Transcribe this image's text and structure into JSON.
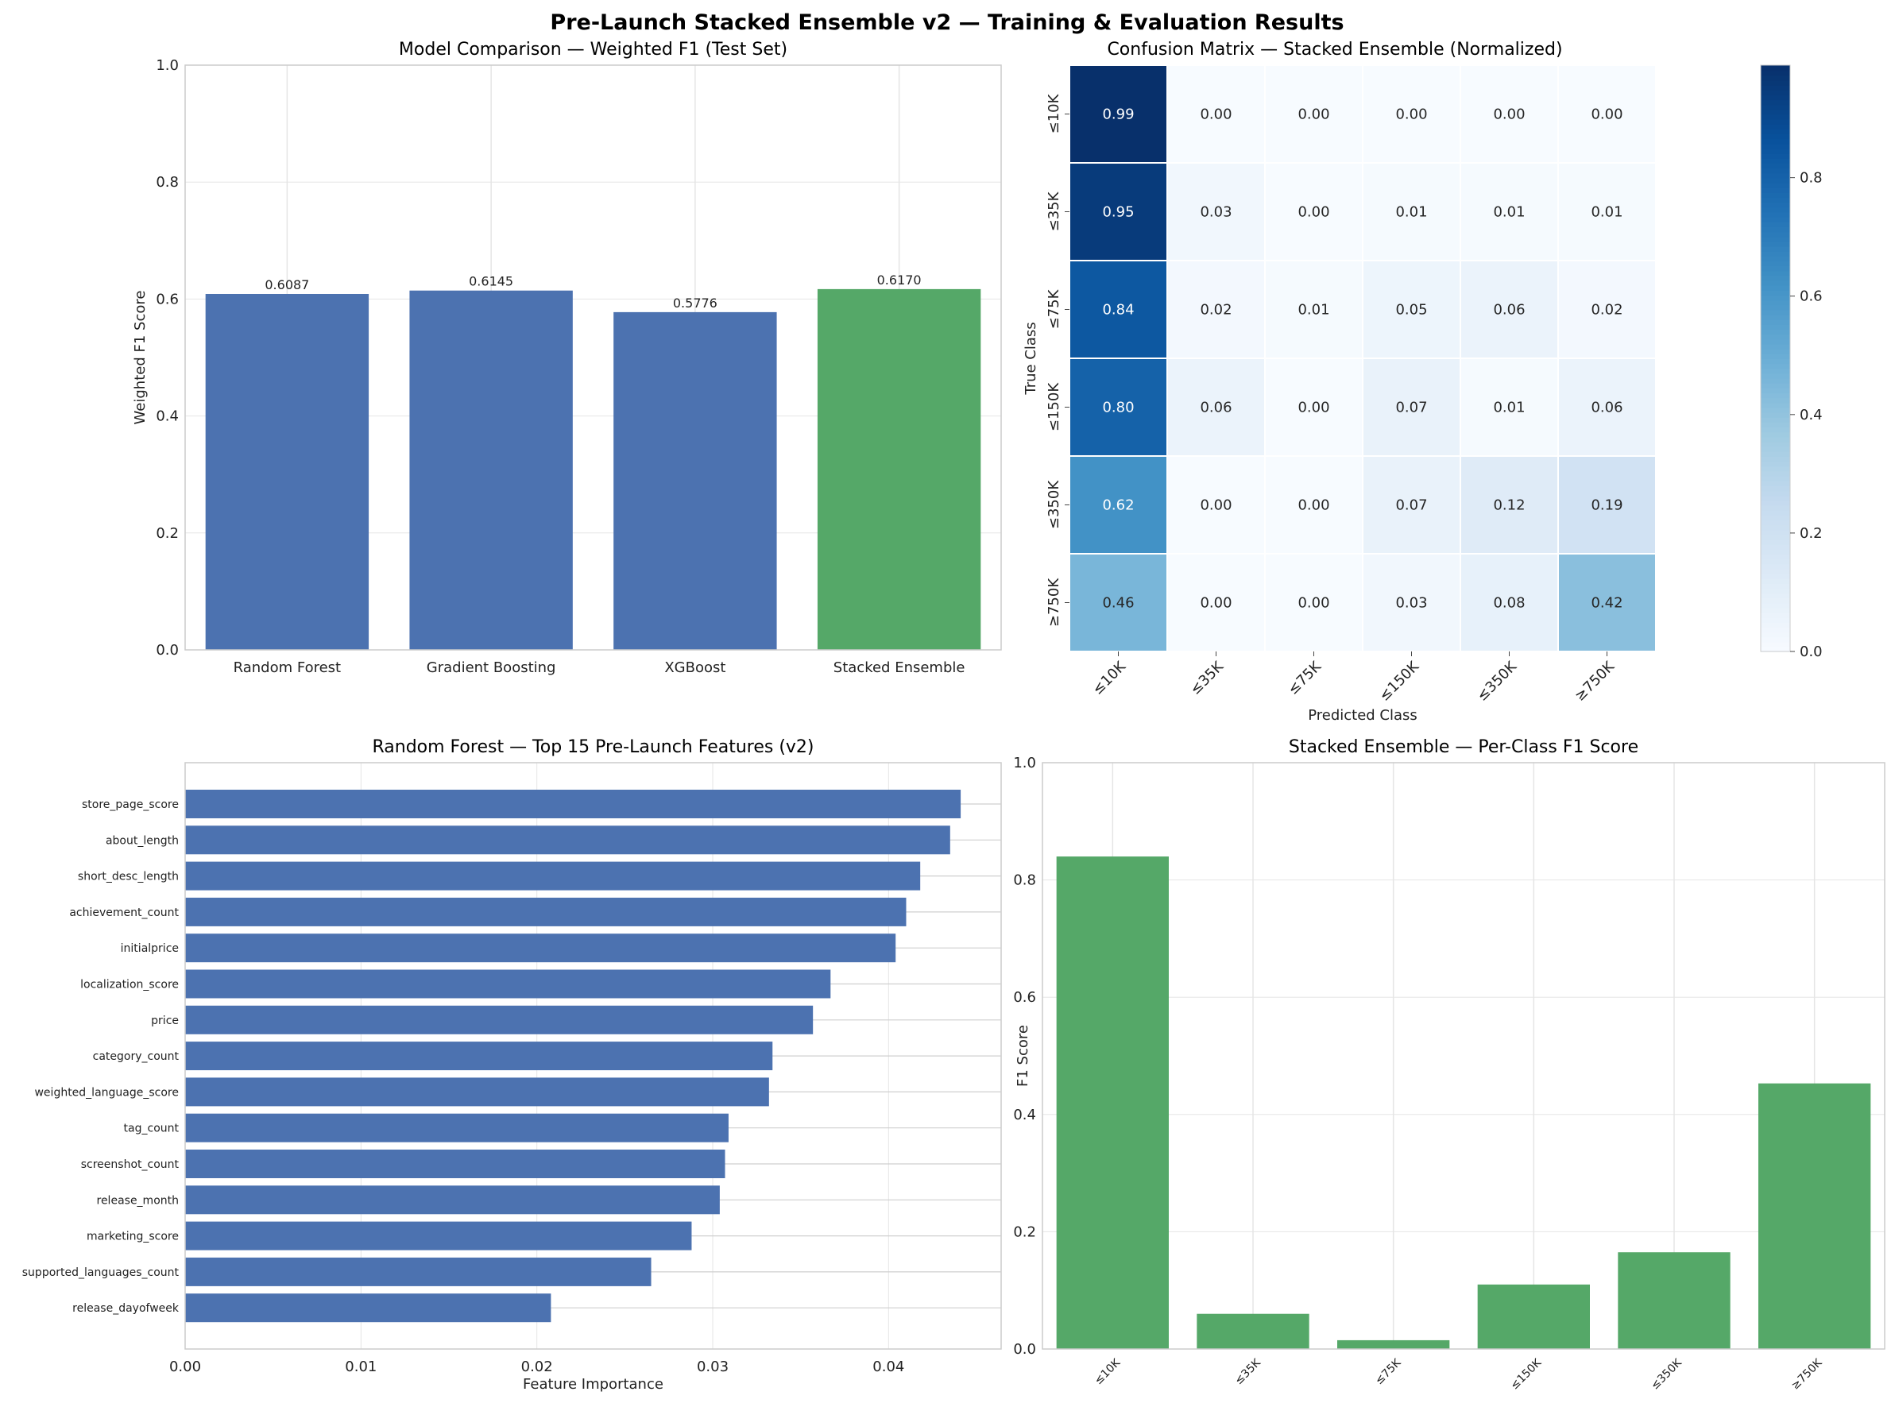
{
  "figure": {
    "title": "Pre-Launch Stacked Ensemble v2 — Training & Evaluation Results"
  },
  "colors": {
    "bar_blue": "#4c72b0",
    "bar_green": "#55a868",
    "grid": "#e5e5e5",
    "axis_frame": "#cccccc"
  },
  "chart_data": [
    {
      "type": "bar",
      "title": "Model Comparison — Weighted F1 (Test Set)",
      "xlabel": "",
      "ylabel": "Weighted F1 Score",
      "categories": [
        "Random Forest",
        "Gradient Boosting",
        "XGBoost",
        "Stacked Ensemble"
      ],
      "values": [
        0.6087,
        0.6145,
        0.5776,
        0.617
      ],
      "value_labels": [
        "0.6087",
        "0.6145",
        "0.5776",
        "0.6170"
      ],
      "bar_colors": [
        "#4c72b0",
        "#4c72b0",
        "#4c72b0",
        "#55a868"
      ],
      "ylim": [
        0,
        1.0
      ],
      "yticks": [
        0.0,
        0.2,
        0.4,
        0.6,
        0.8,
        1.0
      ],
      "ytick_labels": [
        "0.0",
        "0.2",
        "0.4",
        "0.6",
        "0.8",
        "1.0"
      ],
      "grid": true
    },
    {
      "type": "heatmap",
      "title": "Confusion Matrix — Stacked Ensemble (Normalized)",
      "xlabel": "Predicted Class",
      "ylabel": "True Class",
      "x_categories": [
        "≤10K",
        "≤35K",
        "≤75K",
        "≤150K",
        "≤350K",
        "≥750K"
      ],
      "y_categories": [
        "≤10K",
        "≤35K",
        "≤75K",
        "≤150K",
        "≤350K",
        "≥750K"
      ],
      "values": [
        [
          0.99,
          0.0,
          0.0,
          0.0,
          0.0,
          0.0
        ],
        [
          0.95,
          0.03,
          0.0,
          0.01,
          0.01,
          0.01
        ],
        [
          0.84,
          0.02,
          0.01,
          0.05,
          0.06,
          0.02
        ],
        [
          0.8,
          0.06,
          0.0,
          0.07,
          0.01,
          0.06
        ],
        [
          0.62,
          0.0,
          0.0,
          0.07,
          0.12,
          0.19
        ],
        [
          0.46,
          0.0,
          0.0,
          0.03,
          0.08,
          0.42
        ]
      ],
      "value_labels": [
        [
          "0.99",
          "0.00",
          "0.00",
          "0.00",
          "0.00",
          "0.00"
        ],
        [
          "0.95",
          "0.03",
          "0.00",
          "0.01",
          "0.01",
          "0.01"
        ],
        [
          "0.84",
          "0.02",
          "0.01",
          "0.05",
          "0.06",
          "0.02"
        ],
        [
          "0.80",
          "0.06",
          "0.00",
          "0.07",
          "0.01",
          "0.06"
        ],
        [
          "0.62",
          "0.00",
          "0.00",
          "0.07",
          "0.12",
          "0.19"
        ],
        [
          "0.46",
          "0.00",
          "0.00",
          "0.03",
          "0.08",
          "0.42"
        ]
      ],
      "colormap": "Blues",
      "colorbar_range": [
        0,
        0.99
      ],
      "colorbar_ticks": [
        0.0,
        0.2,
        0.4,
        0.6,
        0.8
      ],
      "colorbar_tick_labels": [
        "0.0",
        "0.2",
        "0.4",
        "0.6",
        "0.8"
      ]
    },
    {
      "type": "bar",
      "orientation": "horizontal",
      "title": "Random Forest — Top 15 Pre-Launch Features (v2)",
      "xlabel": "Feature Importance",
      "ylabel": "",
      "categories": [
        "store_page_score",
        "about_length",
        "short_desc_length",
        "achievement_count",
        "initialprice",
        "localization_score",
        "price",
        "category_count",
        "weighted_language_score",
        "tag_count",
        "screenshot_count",
        "release_month",
        "marketing_score",
        "supported_languages_count",
        "release_dayofweek"
      ],
      "values": [
        0.0441,
        0.0435,
        0.0418,
        0.041,
        0.0404,
        0.0367,
        0.0357,
        0.0334,
        0.0332,
        0.0309,
        0.0307,
        0.0304,
        0.0288,
        0.0265,
        0.0208
      ],
      "xlim": [
        0,
        0.0464
      ],
      "xticks": [
        0.0,
        0.01,
        0.02,
        0.03,
        0.04
      ],
      "xtick_labels": [
        "0.00",
        "0.01",
        "0.02",
        "0.03",
        "0.04"
      ],
      "bar_color": "#4c72b0",
      "grid": true
    },
    {
      "type": "bar",
      "title": "Stacked Ensemble — Per-Class F1 Score",
      "xlabel": "",
      "ylabel": "F1 Score",
      "categories": [
        "≤10K",
        "≤35K",
        "≤75K",
        "≤150K",
        "≤350K",
        "≥750K"
      ],
      "values": [
        0.84,
        0.06,
        0.015,
        0.11,
        0.165,
        0.453
      ],
      "bar_color": "#55a868",
      "ylim": [
        0,
        1.0
      ],
      "yticks": [
        0.0,
        0.2,
        0.4,
        0.6,
        0.8,
        1.0
      ],
      "ytick_labels": [
        "0.0",
        "0.2",
        "0.4",
        "0.6",
        "0.8",
        "1.0"
      ],
      "grid": true
    }
  ]
}
